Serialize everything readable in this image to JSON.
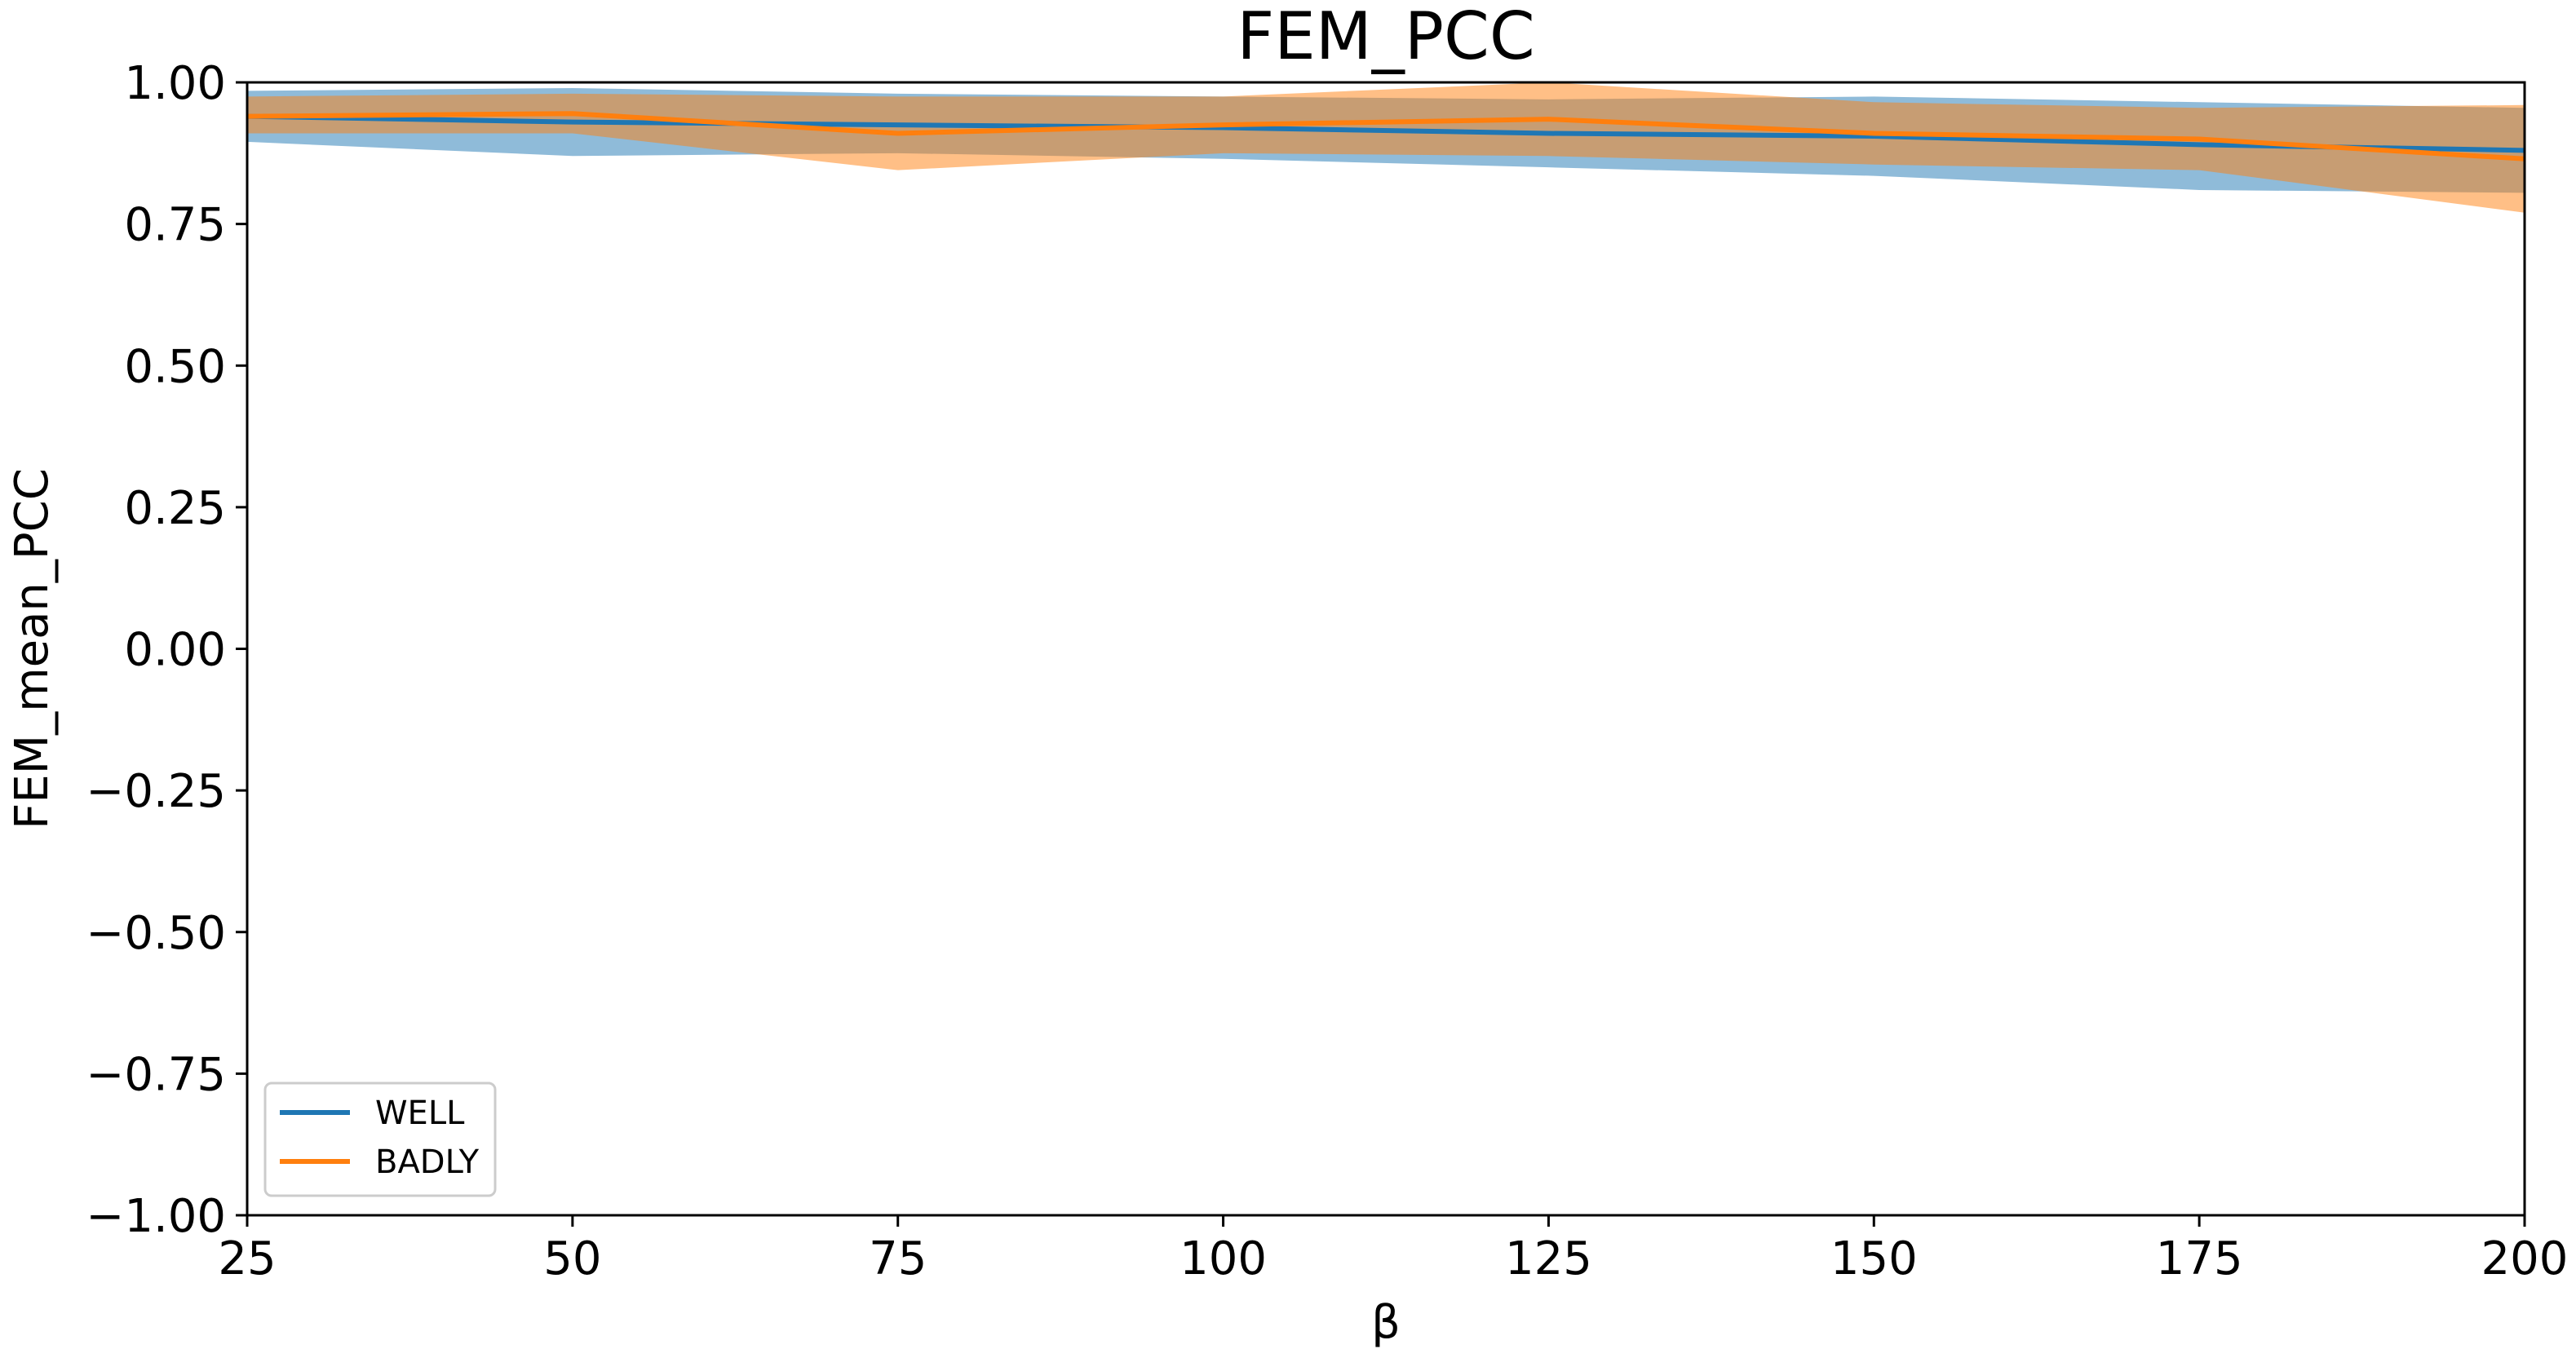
{
  "chart_data": {
    "type": "line",
    "title": "FEM_PCC",
    "xlabel": "β",
    "ylabel": "FEM_mean_PCC",
    "xlim": [
      25,
      200
    ],
    "ylim": [
      -1.0,
      1.0
    ],
    "grid": false,
    "legend_position": "lower-left",
    "x_ticks": [
      "25",
      "50",
      "75",
      "100",
      "125",
      "150",
      "175",
      "200"
    ],
    "y_ticks": [
      "−1.00",
      "−0.75",
      "−0.50",
      "−0.25",
      "0.00",
      "0.25",
      "0.50",
      "0.75",
      "1.00"
    ],
    "x": [
      25,
      50,
      75,
      100,
      125,
      150,
      175,
      200
    ],
    "series": [
      {
        "name": "WELL",
        "color": "#1f77b4",
        "band_color": "#1f77b4",
        "values": [
          0.94,
          0.93,
          0.925,
          0.92,
          0.91,
          0.905,
          0.89,
          0.88
        ],
        "upper": [
          0.985,
          0.99,
          0.98,
          0.975,
          0.97,
          0.975,
          0.965,
          0.955
        ],
        "lower": [
          0.895,
          0.87,
          0.875,
          0.865,
          0.85,
          0.835,
          0.81,
          0.805
        ]
      },
      {
        "name": "BADLY",
        "color": "#ff7f0e",
        "band_color": "#ff7f0e",
        "values": [
          0.94,
          0.945,
          0.91,
          0.925,
          0.935,
          0.91,
          0.9,
          0.865
        ],
        "upper": [
          0.975,
          0.98,
          0.975,
          0.975,
          1.0,
          0.965,
          0.955,
          0.96
        ],
        "lower": [
          0.91,
          0.91,
          0.845,
          0.875,
          0.87,
          0.855,
          0.845,
          0.77
        ]
      }
    ]
  }
}
